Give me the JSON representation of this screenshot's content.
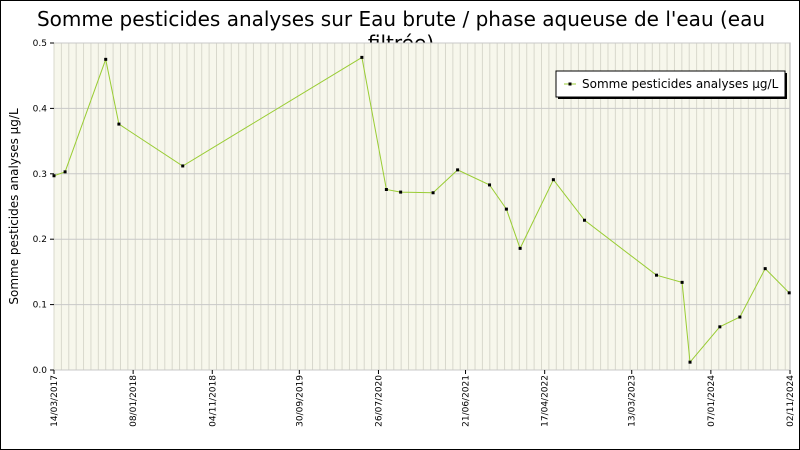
{
  "chart_data": {
    "type": "line",
    "title": "Somme pesticides analyses sur Eau brute / phase aqueuse de l'eau (eau filtrée)",
    "ylabel": "Somme pesticides analyses µg/L",
    "xlabel": "",
    "ylim": [
      0,
      0.5
    ],
    "y_ticks": [
      "0.0",
      "0.1",
      "0.2",
      "0.3",
      "0.4",
      "0.5"
    ],
    "x_range": [
      "2017-03-14",
      "2024-11-02"
    ],
    "x_tick_labels": [
      {
        "date": "2017-03-14",
        "label": "14/03/2017"
      },
      {
        "date": "2018-01-08",
        "label": "08/01/2018"
      },
      {
        "date": "2018-11-04",
        "label": "04/11/2018"
      },
      {
        "date": "2019-09-30",
        "label": "30/09/2019"
      },
      {
        "date": "2020-07-26",
        "label": "26/07/2020"
      },
      {
        "date": "2021-06-21",
        "label": "21/06/2021"
      },
      {
        "date": "2022-04-17",
        "label": "17/04/2022"
      },
      {
        "date": "2023-03-13",
        "label": "13/03/2023"
      },
      {
        "date": "2024-01-07",
        "label": "07/01/2024"
      },
      {
        "date": "2024-11-02",
        "label": "02/11/2024"
      }
    ],
    "grid": true,
    "legend_position": "top-right",
    "line_color": "#99cc33",
    "marker_color": "#000000",
    "plot_background": "#f7f7ec",
    "series": [
      {
        "name": "Somme pesticides analyses µg/L",
        "points": [
          {
            "x": "2017-03-14",
            "y": 0.297
          },
          {
            "x": "2017-04-25",
            "y": 0.303
          },
          {
            "x": "2017-09-26",
            "y": 0.475
          },
          {
            "x": "2017-11-15",
            "y": 0.376
          },
          {
            "x": "2018-07-15",
            "y": 0.312
          },
          {
            "x": "2020-05-24",
            "y": 0.478
          },
          {
            "x": "2020-08-25",
            "y": 0.276
          },
          {
            "x": "2020-10-18",
            "y": 0.272
          },
          {
            "x": "2021-02-18",
            "y": 0.271
          },
          {
            "x": "2021-05-22",
            "y": 0.306
          },
          {
            "x": "2021-09-20",
            "y": 0.283
          },
          {
            "x": "2021-11-23",
            "y": 0.246
          },
          {
            "x": "2022-01-14",
            "y": 0.186
          },
          {
            "x": "2022-05-20",
            "y": 0.291
          },
          {
            "x": "2022-09-15",
            "y": 0.229
          },
          {
            "x": "2023-06-15",
            "y": 0.145
          },
          {
            "x": "2023-09-20",
            "y": 0.134
          },
          {
            "x": "2023-10-20",
            "y": 0.012
          },
          {
            "x": "2024-02-10",
            "y": 0.066
          },
          {
            "x": "2024-04-26",
            "y": 0.081
          },
          {
            "x": "2024-07-31",
            "y": 0.155
          },
          {
            "x": "2024-10-30",
            "y": 0.118
          }
        ]
      }
    ]
  }
}
